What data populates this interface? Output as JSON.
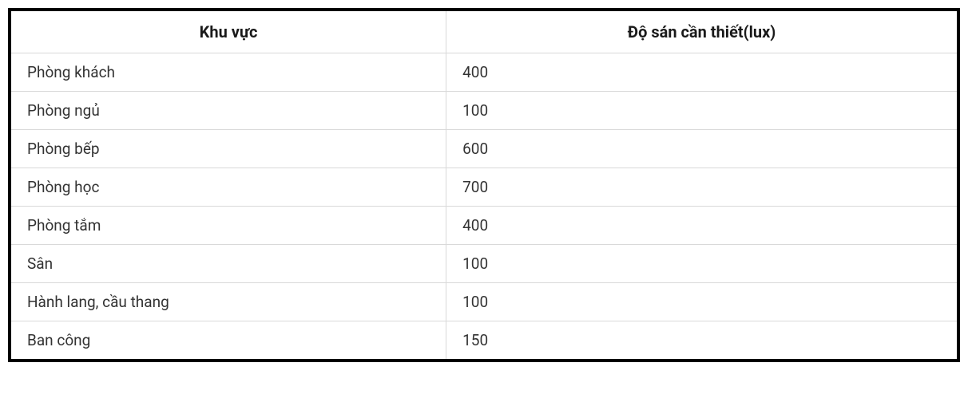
{
  "table": {
    "type": "table",
    "background_color": "#ffffff",
    "border_color": "#000000",
    "border_width": 4,
    "grid_color": "#d9d9d9",
    "header_fontsize": 20,
    "header_fontweight": 700,
    "cell_fontsize": 19,
    "cell_fontweight": 400,
    "text_color": "#333333",
    "header_text_color": "#1a1a1a",
    "columns": [
      {
        "label": "Khu vực",
        "align": "center",
        "width_pct": 46
      },
      {
        "label": "Độ sán cần thiết(lux)",
        "align": "center",
        "width_pct": 54
      }
    ],
    "rows": [
      {
        "area": "Phòng khách",
        "lux": "400"
      },
      {
        "area": "Phòng ngủ",
        "lux": "100"
      },
      {
        "area": "Phòng bếp",
        "lux": "600"
      },
      {
        "area": "Phòng học",
        "lux": "700"
      },
      {
        "area": "Phòng tắm",
        "lux": "400"
      },
      {
        "area": "Sân",
        "lux": "100"
      },
      {
        "area": "Hành lang, cầu thang",
        "lux": "100"
      },
      {
        "area": "Ban công",
        "lux": "150"
      }
    ]
  }
}
